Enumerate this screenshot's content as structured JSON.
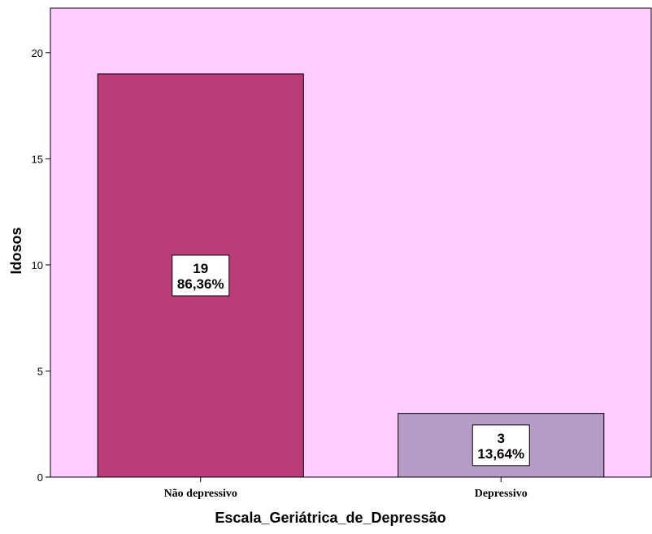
{
  "chart_data": {
    "type": "bar",
    "categories": [
      "Não depressivo",
      "Depressivo"
    ],
    "values": [
      19,
      3
    ],
    "percent_labels": [
      "86,36%",
      "13,64%"
    ],
    "bar_colors": [
      "#BA3D7A",
      "#B89CC8"
    ],
    "plot_background": "#FFCCFF",
    "xlabel": "Escala_Geriátrica_de_Depressão",
    "ylabel": "Idosos",
    "ylim": [
      0,
      22.1
    ],
    "yticks": [
      0,
      5,
      10,
      15,
      20
    ],
    "grid": false
  }
}
